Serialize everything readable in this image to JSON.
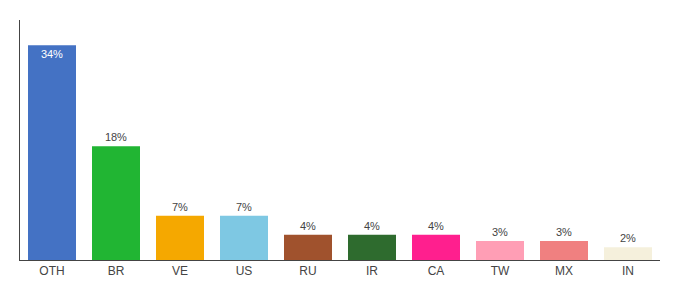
{
  "chart_data": {
    "type": "bar",
    "categories": [
      "OTH",
      "BR",
      "VE",
      "US",
      "RU",
      "IR",
      "CA",
      "TW",
      "MX",
      "IN"
    ],
    "values": [
      34,
      18,
      7,
      7,
      4,
      4,
      4,
      3,
      3,
      2
    ],
    "value_labels": [
      "34%",
      "18%",
      "7%",
      "7%",
      "4%",
      "4%",
      "4%",
      "3%",
      "3%",
      "2%"
    ],
    "colors": [
      "#4472c4",
      "#21b533",
      "#f5a800",
      "#7ec8e3",
      "#a0522d",
      "#2e6b2e",
      "#ff1f8e",
      "#ff9eb5",
      "#f08080",
      "#f5f0dc"
    ],
    "ylim": [
      0,
      38
    ],
    "data_labels": true,
    "tick_labels": "x",
    "grid": false
  }
}
